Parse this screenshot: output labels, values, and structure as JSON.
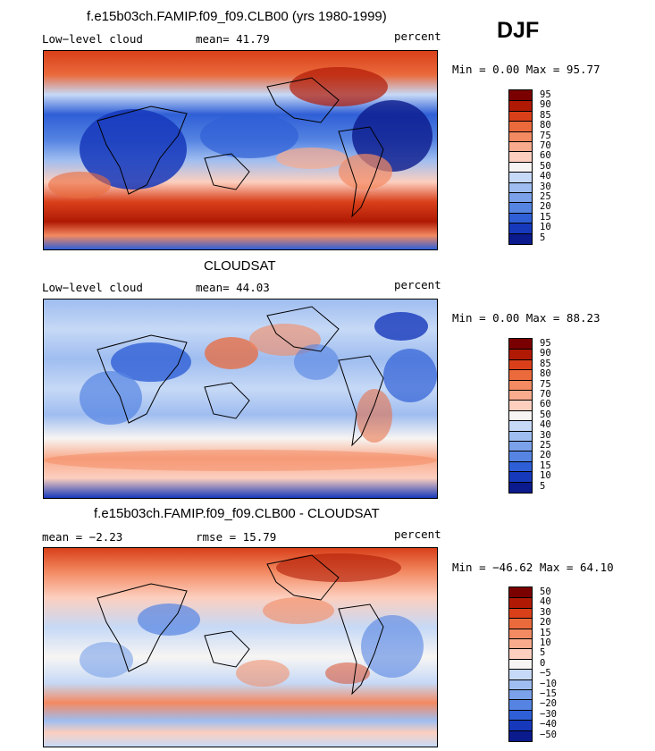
{
  "season": "DJF",
  "panels": [
    {
      "title": "f.e15b03ch.FAMIP.f09_f09.CLB00 (yrs 1980-1999)",
      "left_label": "Low−level cloud",
      "mid_label": "mean=  41.79",
      "right_label": "percent",
      "minmax": "Min =    0.00 Max =  95.77",
      "levels": [
        "95",
        "90",
        "85",
        "80",
        "75",
        "70",
        "60",
        "50",
        "40",
        "30",
        "25",
        "20",
        "15",
        "10",
        "5"
      ]
    },
    {
      "title": "CLOUDSAT",
      "left_label": "Low−level cloud",
      "mid_label": "mean=  44.03",
      "right_label": "percent",
      "minmax": "Min =    0.00 Max =  88.23",
      "levels": [
        "95",
        "90",
        "85",
        "80",
        "75",
        "70",
        "60",
        "50",
        "40",
        "30",
        "25",
        "20",
        "15",
        "10",
        "5"
      ]
    },
    {
      "title": "f.e15b03ch.FAMIP.f09_f09.CLB00 - CLOUDSAT",
      "left_label": "mean =   −2.23",
      "mid_label": "rmse =   15.79",
      "right_label": "percent",
      "minmax": "Min = −46.62 Max =  64.10",
      "levels": [
        "50",
        "40",
        "30",
        "20",
        "15",
        "10",
        "5",
        "0",
        "−5",
        "−10",
        "−15",
        "−20",
        "−30",
        "−40",
        "−50"
      ]
    }
  ],
  "colors": {
    "scale": [
      "#7a0000",
      "#b01a05",
      "#d9401a",
      "#ea6a3c",
      "#f38a62",
      "#f9ab8d",
      "#fccfbf",
      "#f7f5f3",
      "#c6d9f6",
      "#9fbdf0",
      "#7aa1ea",
      "#5584e2",
      "#2f5fd6",
      "#1638bb",
      "#0b1a8c"
    ]
  }
}
